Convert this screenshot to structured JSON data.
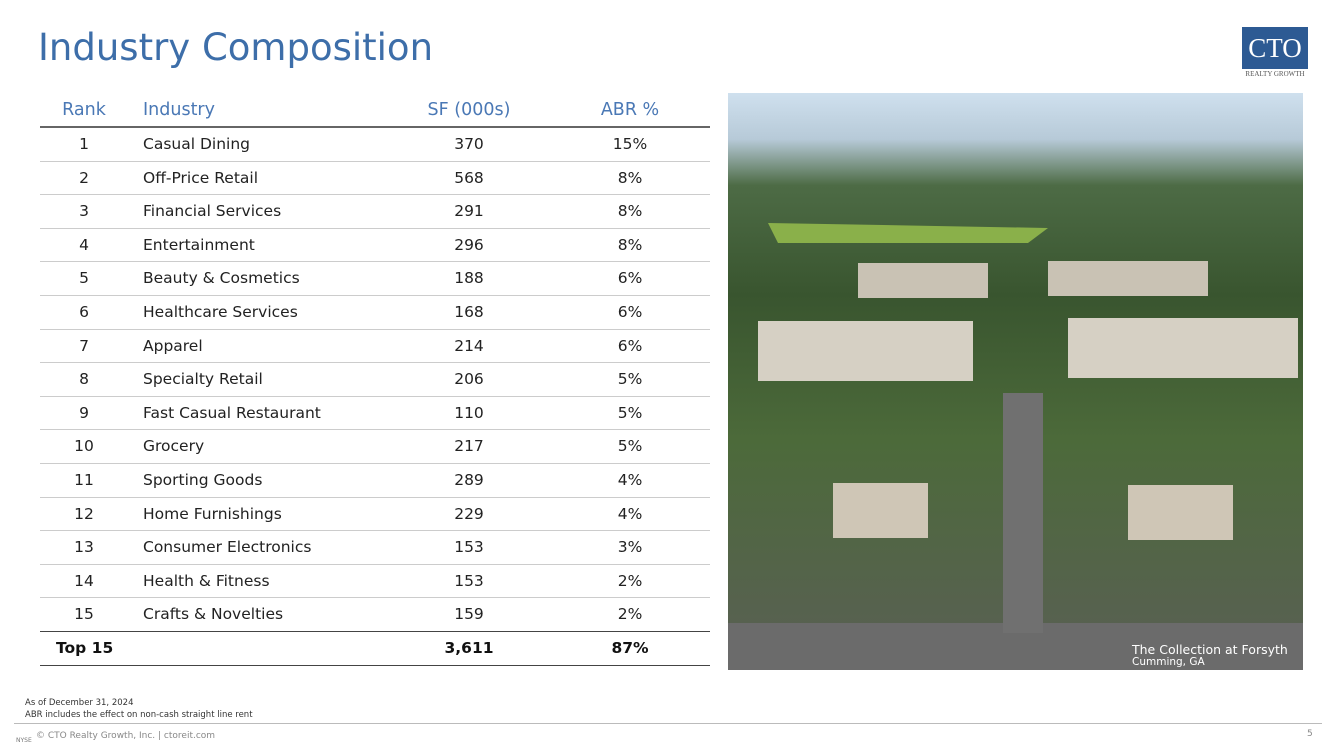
{
  "header": {
    "title": "Industry Composition",
    "logo": {
      "name": "CTO",
      "tagline": "REALTY GROWTH"
    }
  },
  "table": {
    "columns": [
      "Rank",
      "Industry",
      "SF (000s)",
      "ABR %"
    ],
    "rows": [
      [
        "1",
        "Casual Dining",
        "370",
        "15%"
      ],
      [
        "2",
        "Off-Price Retail",
        "568",
        "8%"
      ],
      [
        "3",
        "Financial Services",
        "291",
        "8%"
      ],
      [
        "4",
        "Entertainment",
        "296",
        "8%"
      ],
      [
        "5",
        "Beauty & Cosmetics",
        "188",
        "6%"
      ],
      [
        "6",
        "Healthcare Services",
        "168",
        "6%"
      ],
      [
        "7",
        "Apparel",
        "214",
        "6%"
      ],
      [
        "8",
        "Specialty Retail",
        "206",
        "5%"
      ],
      [
        "9",
        "Fast Casual Restaurant",
        "110",
        "5%"
      ],
      [
        "10",
        "Grocery",
        "217",
        "5%"
      ],
      [
        "11",
        "Sporting Goods",
        "289",
        "4%"
      ],
      [
        "12",
        "Home Furnishings",
        "229",
        "4%"
      ],
      [
        "13",
        "Consumer Electronics",
        "153",
        "3%"
      ],
      [
        "14",
        "Health & Fitness",
        "153",
        "2%"
      ],
      [
        "15",
        "Crafts & Novelties",
        "159",
        "2%"
      ]
    ],
    "total": [
      "Top 15",
      "3,611",
      "87%"
    ]
  },
  "photo": {
    "caption": "The Collection at Forsyth",
    "location": "Cumming, GA"
  },
  "notes": [
    "As of December 31, 2024",
    "ABR includes the effect on non-cash straight line rent"
  ],
  "footer": {
    "text": "© CTO Realty Growth, Inc. | ctoreit.com",
    "exchange": "NYSE",
    "page": "5"
  }
}
